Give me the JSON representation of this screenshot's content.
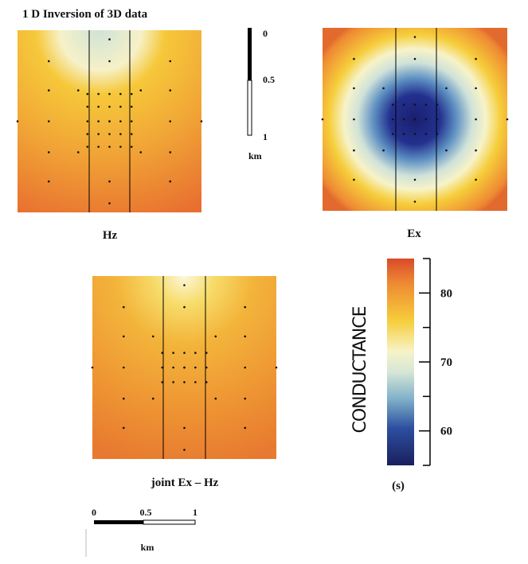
{
  "title": "1 D  Inversion of 3D data",
  "panels": [
    {
      "label": "Hz"
    },
    {
      "label": "Ex"
    },
    {
      "label": "joint Ex – Hz"
    }
  ],
  "depth_scale": {
    "labels": [
      "0",
      "0.5",
      "1"
    ],
    "unit": "km"
  },
  "colorbar": {
    "label": "CONDUCTANCE",
    "unit": "(s)",
    "range": [
      55,
      85
    ],
    "ticks": [
      60,
      70,
      80
    ],
    "minor_ticks": [
      55,
      65,
      75,
      85
    ]
  },
  "distance_scale": {
    "labels": [
      "0",
      "0.5",
      "1"
    ],
    "unit": "km"
  }
}
